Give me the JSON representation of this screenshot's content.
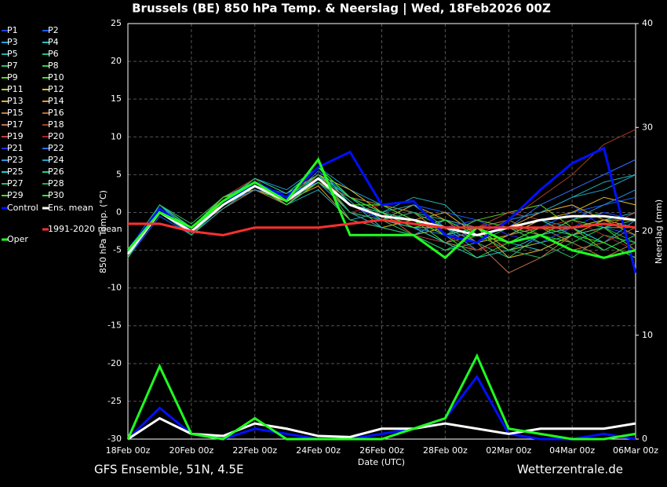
{
  "chart_data": {
    "type": "line",
    "title": "Brussels  (BE)  850 hPa Temp. & Neerslag | Wed, 18Feb2026 00Z",
    "subtitle": "GFS Ensemble, 51N, 4.5E",
    "source": "Wetterzentrale.de",
    "x_label": "Date (UTC)",
    "y_label": "850 hPa Temp. (°C)",
    "y2_label": "Neerslag (mm)",
    "x": [
      0,
      1,
      2,
      3,
      4,
      5,
      6,
      7,
      8,
      9,
      10,
      11,
      12,
      13,
      14,
      15,
      16
    ],
    "xlim": [
      0,
      16
    ],
    "xticks": [
      {
        "value": 0,
        "label": "18Feb 00z"
      },
      {
        "value": 2,
        "label": "20Feb 00z"
      },
      {
        "value": 4,
        "label": "22Feb 00z"
      },
      {
        "value": 6,
        "label": "24Feb 00z"
      },
      {
        "value": 8,
        "label": "26Feb 00z"
      },
      {
        "value": 10,
        "label": "28Feb 00z"
      },
      {
        "value": 12,
        "label": "02Mar 00z"
      },
      {
        "value": 14,
        "label": "04Mar 00z"
      },
      {
        "value": 16,
        "label": "06Mar 00z"
      }
    ],
    "ylim": [
      -30,
      25
    ],
    "yticks": [
      -30,
      -25,
      -20,
      -15,
      -10,
      -5,
      0,
      5,
      10,
      15,
      20,
      25
    ],
    "y2lim": [
      0,
      40
    ],
    "y2ticks": [
      0,
      10,
      20,
      30,
      40
    ],
    "grid": true,
    "series": [
      {
        "name": "P1",
        "color": "#2040ff",
        "values": [
          -5,
          0.5,
          -2,
          1.5,
          4,
          2,
          5,
          2,
          0,
          -2,
          -4,
          -2,
          -1,
          0,
          1,
          -2,
          -3
        ]
      },
      {
        "name": "P2",
        "color": "#1060ff",
        "values": [
          -6,
          -0.5,
          -3,
          0.5,
          3,
          1,
          4,
          0,
          -1,
          1,
          0,
          -1,
          -3,
          -2,
          0,
          1,
          2
        ]
      },
      {
        "name": "P3",
        "color": "#20a0e0",
        "values": [
          -5.5,
          1,
          -2,
          2,
          4.5,
          3,
          6,
          3,
          1,
          -1,
          -2,
          -5,
          -3,
          -1,
          -2,
          -4,
          -1
        ]
      },
      {
        "name": "P4",
        "color": "#20c0c0",
        "values": [
          -5,
          0,
          -2.5,
          1,
          3.5,
          2,
          5,
          1.5,
          -2,
          -3,
          -1,
          -2,
          -4,
          -5,
          -3,
          -1,
          0
        ]
      },
      {
        "name": "P5",
        "color": "#20b0b0",
        "values": [
          -6,
          0.5,
          -3,
          1.5,
          4,
          1,
          3,
          -1,
          0,
          2,
          1,
          -3,
          -2,
          0,
          2,
          4,
          5
        ]
      },
      {
        "name": "P6",
        "color": "#20c080",
        "values": [
          -5,
          0,
          -2,
          1,
          3,
          2,
          4,
          2,
          1,
          0,
          -1,
          -4,
          -6,
          -3,
          -2,
          -1,
          -2
        ]
      },
      {
        "name": "P7",
        "color": "#30c060",
        "values": [
          -5.5,
          1,
          -1.5,
          2,
          4,
          1.5,
          5,
          0,
          -1,
          -3,
          -5,
          -3,
          -2,
          -4,
          -6,
          -3,
          -4
        ]
      },
      {
        "name": "P8",
        "color": "#30d040",
        "values": [
          -5,
          0.5,
          -2.5,
          1.5,
          4.5,
          2.5,
          6,
          2,
          -1,
          0,
          -3,
          -6,
          -4,
          -2,
          -1,
          0,
          -1
        ]
      },
      {
        "name": "P9",
        "color": "#60d020",
        "values": [
          -6,
          0,
          -3,
          0.5,
          3.5,
          1,
          4,
          1,
          0,
          -2,
          -2,
          -1,
          0,
          1,
          -2,
          -5,
          -3
        ]
      },
      {
        "name": "P10",
        "color": "#40e020",
        "values": [
          -5,
          1,
          -2,
          1,
          4,
          2,
          5,
          0,
          -2,
          -1,
          -4,
          -3,
          -1,
          -3,
          -4,
          -2,
          -5
        ]
      },
      {
        "name": "P11",
        "color": "#c0d020",
        "values": [
          -5.5,
          0.5,
          -2,
          2,
          3,
          1.5,
          4,
          1,
          1,
          -1,
          -3,
          -2,
          -5,
          -4,
          -2,
          -1,
          -1
        ]
      },
      {
        "name": "P12",
        "color": "#e0c020",
        "values": [
          -5,
          0,
          -2.5,
          1,
          3.5,
          2.5,
          5,
          3,
          0,
          -3,
          -2,
          -4,
          -3,
          -1,
          0,
          2,
          1
        ]
      },
      {
        "name": "P13",
        "color": "#e0b020",
        "values": [
          -6,
          0.5,
          -3,
          1.5,
          4,
          1,
          4.5,
          0,
          -1,
          1,
          -1,
          -2,
          -6,
          -5,
          -3,
          -1,
          -2
        ]
      },
      {
        "name": "P14",
        "color": "#e0a020",
        "values": [
          -5,
          0,
          -2,
          1,
          3.5,
          1.5,
          3.5,
          -1,
          -2,
          -1,
          0,
          -3,
          -2,
          0,
          1,
          -1,
          -3
        ]
      },
      {
        "name": "P15",
        "color": "#c08040",
        "values": [
          -5.5,
          1,
          -2.5,
          2,
          4,
          2,
          5,
          1,
          0,
          -2,
          -4,
          -5,
          -3,
          -2,
          -4,
          -6,
          -4
        ]
      },
      {
        "name": "P16",
        "color": "#b07030",
        "values": [
          -5,
          0,
          -2,
          0.5,
          3,
          1,
          4,
          2,
          1,
          0,
          -3,
          -2,
          -1,
          -3,
          -5,
          -4,
          -2
        ]
      },
      {
        "name": "P17",
        "color": "#c07050",
        "values": [
          -6,
          0.5,
          -3,
          1,
          3.5,
          2,
          5,
          0,
          -1,
          -2,
          -1,
          -4,
          -8,
          -6,
          -3,
          -2,
          -1
        ]
      },
      {
        "name": "P18",
        "color": "#a04020",
        "values": [
          -5,
          1,
          -2,
          1.5,
          4,
          1.5,
          6,
          1,
          -1,
          -1,
          -2,
          -3,
          -1,
          2,
          5,
          9,
          11
        ]
      },
      {
        "name": "P19",
        "color": "#c04040",
        "values": [
          -5.5,
          0,
          -2.5,
          1,
          3,
          2,
          4,
          2,
          0,
          -3,
          -4,
          -2,
          0,
          -1,
          -3,
          -2,
          0
        ]
      },
      {
        "name": "P20",
        "color": "#b02020",
        "values": [
          -5,
          0.5,
          -2,
          2,
          4.5,
          1,
          5,
          0,
          1,
          -1,
          -3,
          -5,
          -4,
          -2,
          -1,
          -3,
          -5
        ]
      },
      {
        "name": "P21",
        "color": "#2030ff",
        "values": [
          -6,
          0,
          -3,
          1,
          3.5,
          2.5,
          4,
          1,
          -1,
          0,
          -2,
          -1,
          -3,
          -4,
          -2,
          0,
          -1
        ]
      },
      {
        "name": "P22",
        "color": "#3070ff",
        "values": [
          -5,
          1,
          -2.5,
          1.5,
          4,
          1.5,
          5.5,
          2,
          0,
          -2,
          -3,
          -3,
          -2,
          1,
          3,
          5,
          7
        ]
      },
      {
        "name": "P23",
        "color": "#3090e0",
        "values": [
          -5.5,
          0.5,
          -2,
          1,
          3,
          2,
          4,
          0,
          -2,
          -3,
          -1,
          -2,
          -4,
          -3,
          -1,
          1,
          3
        ]
      },
      {
        "name": "P24",
        "color": "#20a0c0",
        "values": [
          -5,
          0,
          -3,
          0.5,
          3.5,
          1,
          4.5,
          1,
          0,
          1,
          -2,
          -4,
          -1,
          0,
          2,
          3,
          5
        ]
      },
      {
        "name": "P25",
        "color": "#20d0c0",
        "values": [
          -6,
          1,
          -2,
          2,
          4,
          2,
          5,
          2,
          -1,
          -2,
          -4,
          -6,
          -5,
          -3,
          -2,
          -4,
          -6
        ]
      },
      {
        "name": "P26",
        "color": "#20d090",
        "values": [
          -5,
          0.5,
          -2.5,
          1,
          4.5,
          2.5,
          6,
          1,
          0,
          -1,
          -3,
          -2,
          -2,
          -1,
          -3,
          -2,
          -1
        ]
      },
      {
        "name": "P27",
        "color": "#20c070",
        "values": [
          -5.5,
          0,
          -2,
          1.5,
          3.5,
          1.5,
          5,
          -1,
          -2,
          -3,
          -5,
          -4,
          -2,
          -4,
          -3,
          -5,
          -3
        ]
      },
      {
        "name": "P28",
        "color": "#20b050",
        "values": [
          -5,
          1,
          -3,
          1,
          4,
          2,
          5,
          0,
          -1,
          0,
          -2,
          -3,
          -5,
          -6,
          -4,
          -2,
          -4
        ]
      },
      {
        "name": "P29",
        "color": "#40e030",
        "values": [
          -6,
          0.5,
          -2,
          2,
          3.5,
          1,
          4,
          1,
          1,
          -1,
          -3,
          -1,
          -2,
          -3,
          -1,
          -2,
          -2
        ]
      },
      {
        "name": "P30",
        "color": "#30f020",
        "values": [
          -5,
          0,
          -2.5,
          1.5,
          4,
          2,
          6,
          2,
          0,
          -2,
          -1,
          -3,
          -4,
          -2,
          -3,
          -4,
          -6
        ]
      },
      {
        "name": "Control",
        "color": "#0010ff",
        "values": [
          -5,
          0.5,
          -2.5,
          1,
          4,
          2,
          6,
          8,
          1,
          1.5,
          -3,
          -4,
          -1,
          3,
          6.5,
          8.5,
          -8
        ],
        "precip": [
          0,
          3,
          0.5,
          0,
          1,
          0.5,
          0,
          0,
          0.5,
          1,
          2,
          6,
          0.5,
          0,
          0,
          0.5,
          0
        ]
      },
      {
        "name": "Ens. mean",
        "color": "#ffffff",
        "values": [
          -5.5,
          0,
          -2.5,
          1,
          3.5,
          1.5,
          4.5,
          1,
          -0.5,
          -1,
          -2,
          -3,
          -2,
          -1,
          -0.5,
          -0.5,
          -1
        ],
        "precip": [
          0,
          2,
          0.5,
          0.3,
          1.5,
          1,
          0.3,
          0.2,
          1,
          1,
          1.5,
          1,
          0.5,
          1,
          1,
          1,
          1.5
        ]
      },
      {
        "name": "Oper",
        "color": "#20ff20",
        "values": [
          -5,
          0,
          -2,
          1.5,
          4,
          1.5,
          7,
          -3,
          -3,
          -3,
          -6,
          -2,
          -4,
          -3,
          -5,
          -6,
          -5
        ],
        "precip": [
          0,
          7,
          0.5,
          0,
          2,
          0,
          0,
          0,
          0,
          1,
          2,
          8,
          1,
          0.5,
          0,
          0,
          0.5
        ]
      },
      {
        "name": "1991-2020 mean",
        "color": "#ff3030",
        "values": [
          -1.5,
          -1.5,
          -2.5,
          -3,
          -2,
          -2,
          -2,
          -1.5,
          -1,
          -1.5,
          -2,
          -2,
          -2,
          -2,
          -2,
          -1.5,
          -2
        ]
      }
    ]
  }
}
